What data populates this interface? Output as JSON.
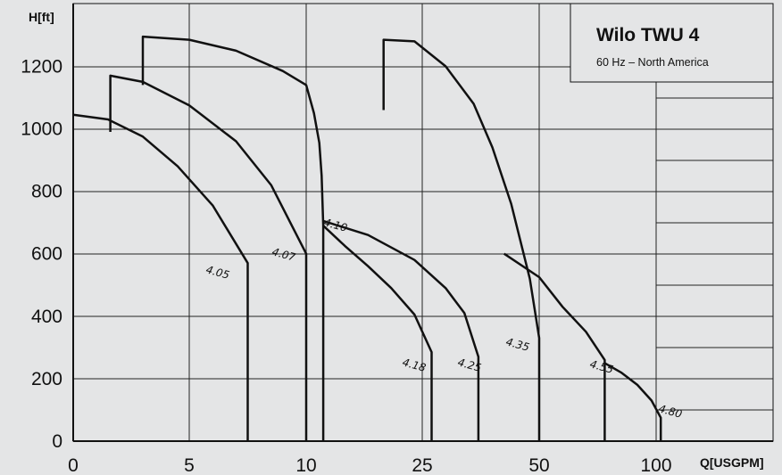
{
  "chart_data": {
    "type": "line",
    "title": "Wilo TWU 4",
    "subtitle": "60 Hz – North America",
    "ylabel": "H[ft]",
    "xlabel": "Q[USGPM]",
    "y_ticks": [
      "0",
      "200",
      "400",
      "600",
      "800",
      "1000",
      "1200"
    ],
    "x_ticks": [
      "0",
      "5",
      "10",
      "25",
      "50",
      "100"
    ],
    "ylim": [
      0,
      1400
    ],
    "grid": true,
    "series": [
      {
        "name": "4.05",
        "points": [
          [
            0,
            1045
          ],
          [
            1.5,
            1030
          ],
          [
            3,
            975
          ],
          [
            4.5,
            880
          ],
          [
            6,
            755
          ],
          [
            7.5,
            570
          ]
        ]
      },
      {
        "name": "4.07",
        "points": [
          [
            1.6,
            990
          ],
          [
            1.6,
            1170
          ],
          [
            3,
            1150
          ],
          [
            5,
            1075
          ],
          [
            7,
            960
          ],
          [
            8.5,
            820
          ],
          [
            10,
            600
          ]
        ]
      },
      {
        "name": "4.10",
        "points": [
          [
            3,
            1140
          ],
          [
            3,
            1295
          ],
          [
            5,
            1285
          ],
          [
            7,
            1250
          ],
          [
            9,
            1185
          ],
          [
            10,
            1140
          ],
          [
            11,
            1050
          ],
          [
            11.7,
            955
          ],
          [
            12,
            850
          ],
          [
            12.2,
            690
          ]
        ]
      },
      {
        "name": "4.18",
        "points": [
          [
            12.2,
            690
          ],
          [
            15,
            625
          ],
          [
            18,
            560
          ],
          [
            21,
            490
          ],
          [
            24,
            405
          ],
          [
            27,
            285
          ]
        ]
      },
      {
        "name": "4.25",
        "points": [
          [
            12.2,
            705
          ],
          [
            18,
            660
          ],
          [
            24,
            580
          ],
          [
            30,
            490
          ],
          [
            34,
            410
          ],
          [
            37,
            270
          ]
        ]
      },
      {
        "name": "4.35",
        "points": [
          [
            20,
            1060
          ],
          [
            20,
            1285
          ],
          [
            24,
            1280
          ],
          [
            30,
            1200
          ],
          [
            36,
            1080
          ],
          [
            40,
            940
          ],
          [
            44,
            760
          ],
          [
            48,
            520
          ],
          [
            50,
            330
          ]
        ]
      },
      {
        "name": "4.55",
        "points": [
          [
            42.5,
            600
          ],
          [
            50,
            525
          ],
          [
            60,
            430
          ],
          [
            70,
            350
          ],
          [
            78,
            260
          ]
        ]
      },
      {
        "name": "4.80",
        "points": [
          [
            78,
            250
          ],
          [
            85,
            220
          ],
          [
            92,
            180
          ],
          [
            98,
            130
          ],
          [
            102,
            75
          ]
        ]
      }
    ]
  }
}
